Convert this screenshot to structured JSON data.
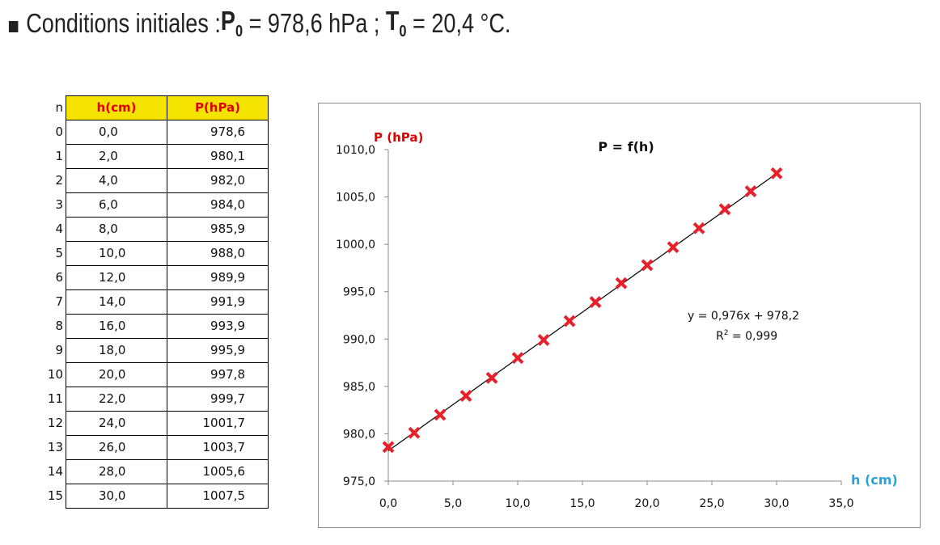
{
  "header": {
    "prefix": "Conditions initiales : ",
    "p_symbol": "P",
    "p_sub": "0",
    "p_value": " = 978,6 hPa ; ",
    "t_symbol": "T",
    "t_sub": "0",
    "t_value": " = 20,4 °C."
  },
  "table": {
    "headers": {
      "n": "n",
      "h": "h(cm)",
      "p": "P(hPa)"
    },
    "rows": [
      {
        "n": "0",
        "h": "0,0",
        "p": "978,6"
      },
      {
        "n": "1",
        "h": "2,0",
        "p": "980,1"
      },
      {
        "n": "2",
        "h": "4,0",
        "p": "982,0"
      },
      {
        "n": "3",
        "h": "6,0",
        "p": "984,0"
      },
      {
        "n": "4",
        "h": "8,0",
        "p": "985,9"
      },
      {
        "n": "5",
        "h": "10,0",
        "p": "988,0"
      },
      {
        "n": "6",
        "h": "12,0",
        "p": "989,9"
      },
      {
        "n": "7",
        "h": "14,0",
        "p": "991,9"
      },
      {
        "n": "8",
        "h": "16,0",
        "p": "993,9"
      },
      {
        "n": "9",
        "h": "18,0",
        "p": "995,9"
      },
      {
        "n": "10",
        "h": "20,0",
        "p": "997,8"
      },
      {
        "n": "11",
        "h": "22,0",
        "p": "999,7"
      },
      {
        "n": "12",
        "h": "24,0",
        "p": "1001,7"
      },
      {
        "n": "13",
        "h": "26,0",
        "p": "1003,7"
      },
      {
        "n": "14",
        "h": "28,0",
        "p": "1005,6"
      },
      {
        "n": "15",
        "h": "30,0",
        "p": "1007,5"
      }
    ]
  },
  "chart_data": {
    "type": "scatter",
    "title": "P = f(h)",
    "xlabel": "h (cm)",
    "ylabel": "P (hPa)",
    "xlim": [
      0,
      35
    ],
    "ylim": [
      975,
      1010
    ],
    "x_ticks": [
      "0,0",
      "5,0",
      "10,0",
      "15,0",
      "20,0",
      "25,0",
      "30,0",
      "35,0"
    ],
    "y_ticks": [
      "975,0",
      "980,0",
      "985,0",
      "990,0",
      "995,0",
      "1000,0",
      "1005,0",
      "1010,0"
    ],
    "x": [
      0,
      2,
      4,
      6,
      8,
      10,
      12,
      14,
      16,
      18,
      20,
      22,
      24,
      26,
      28,
      30
    ],
    "y": [
      978.6,
      980.1,
      982.0,
      984.0,
      985.9,
      988.0,
      989.9,
      991.9,
      993.9,
      995.9,
      997.8,
      999.7,
      1001.7,
      1003.7,
      1005.6,
      1007.5
    ],
    "trendline": {
      "slope": 0.976,
      "intercept": 978.2,
      "x_range": [
        0,
        30
      ]
    },
    "equation": "y = 0,976x + 978,2",
    "r2_prefix": "R",
    "r2_sup": "2",
    "r2_value": " = 0,999",
    "marker_color": "#e8202a",
    "line_color": "#000000",
    "grid": false,
    "legend": "none"
  }
}
